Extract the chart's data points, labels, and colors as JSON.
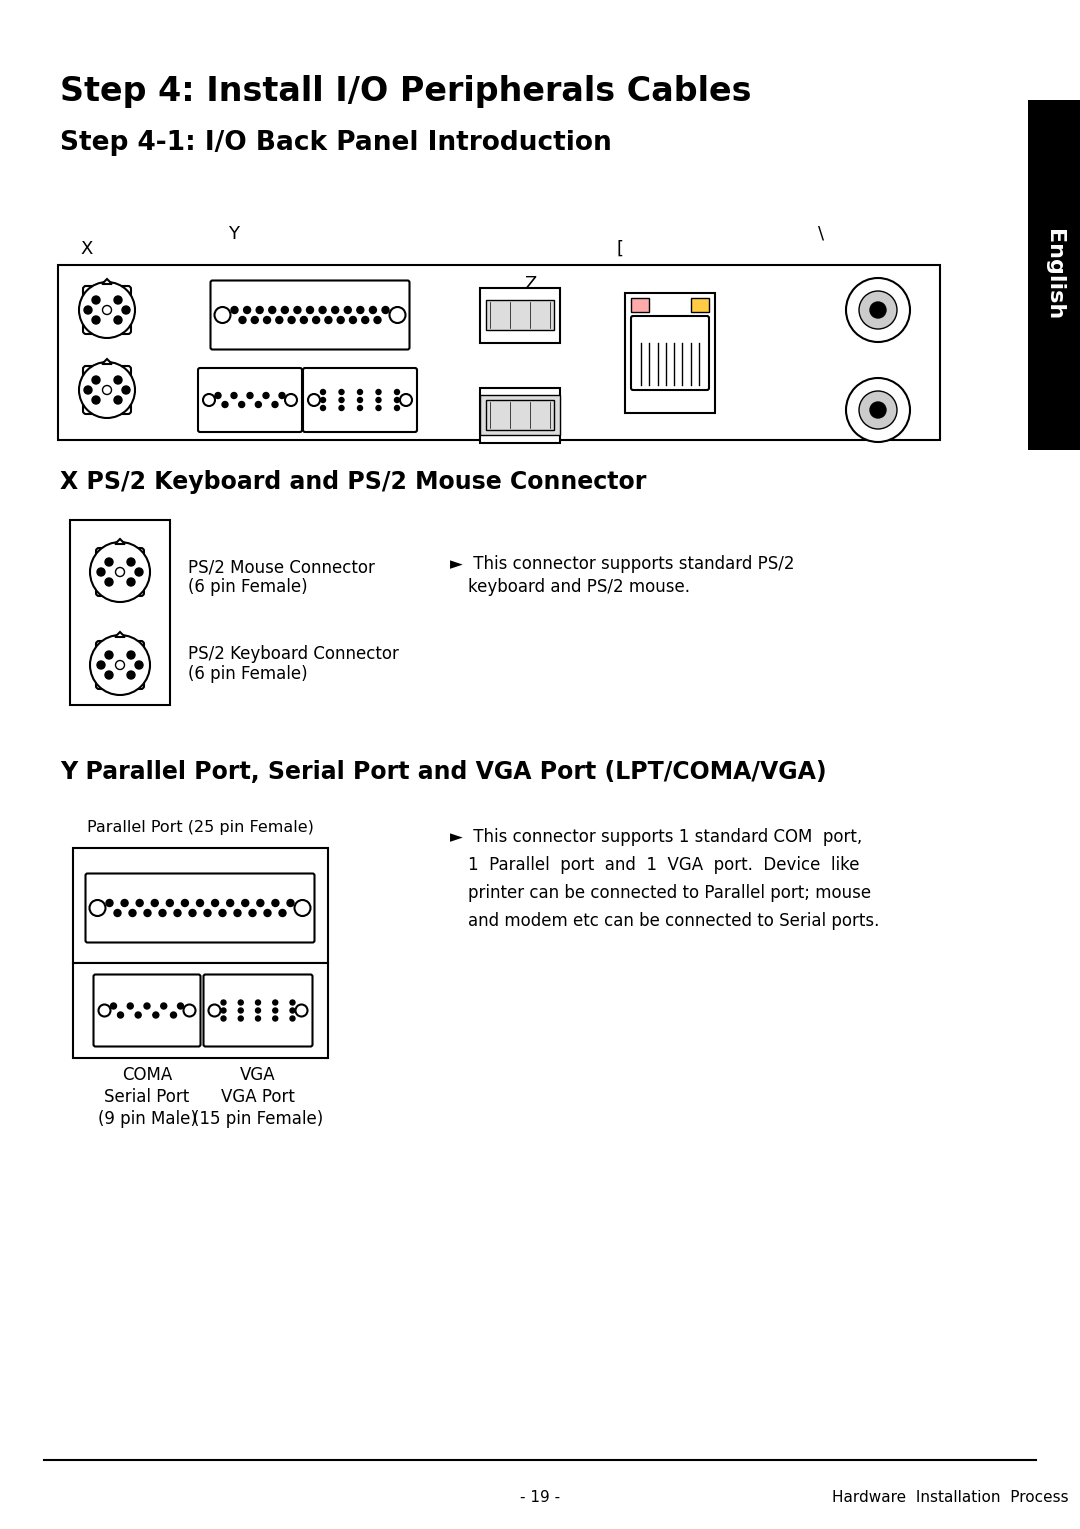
{
  "title": "Step 4: Install I/O Peripherals Cables",
  "subtitle": "Step 4-1: I/O Back Panel Introduction",
  "section_x_title": "X PS/2 Keyboard and PS/2 Mouse Connector",
  "section_y_title": "Y Parallel Port, Serial Port and VGA Port (LPT/COMA/VGA)",
  "ps2_mouse_label1": "PS/2 Mouse Connector",
  "ps2_mouse_label2": "(6 pin Female)",
  "ps2_keyboard_label1": "PS/2 Keyboard Connector",
  "ps2_keyboard_label2": "(6 pin Female)",
  "ps2_desc1": "►  This connector supports standard PS/2",
  "ps2_desc2": "keyboard and PS/2 mouse.",
  "parallel_port_label": "Parallel Port (25 pin Female)",
  "coma_label": "COMA",
  "coma_label2": "Serial Port",
  "coma_label3": "(9 pin Male)",
  "vga_label": "VGA",
  "vga_label2": "VGA Port",
  "vga_label3": "(15 pin Female)",
  "y_desc1": "►  This connector supports 1 standard COM  port,",
  "y_desc2": "1  Parallel  port  and  1  VGA  port.  Device  like",
  "y_desc3": "printer can be connected to Parallel port; mouse",
  "y_desc4": "and modem etc can be connected to Serial ports.",
  "footer_left": "- 19 -",
  "footer_right": "Hardware  Installation  Process",
  "tab_text": "English",
  "bg_color": "#ffffff",
  "text_color": "#000000",
  "tab_bg": "#000000",
  "tab_text_color": "#ffffff",
  "label_x": "X",
  "label_y": "Y",
  "label_z": "Z",
  "label_bracket": "[",
  "label_backslash": "\\"
}
